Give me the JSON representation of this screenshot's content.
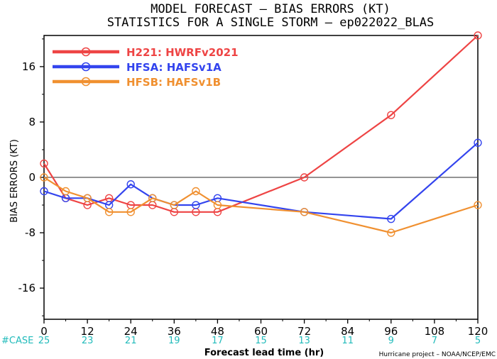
{
  "chart_data": {
    "type": "line",
    "title": "MODEL FORECAST – BIAS ERRORS (KT)",
    "subtitle": "STATISTICS FOR A SINGLE STORM – ep022022_BLAS",
    "xlabel": "Forecast lead time (hr)",
    "ylabel": "BIAS ERRORS (KT)",
    "xlim": [
      0,
      120
    ],
    "ylim": [
      -20.5,
      20.5
    ],
    "x_ticks": [
      "0",
      "12",
      "24",
      "36",
      "48",
      "60",
      "72",
      "84",
      "96",
      "108",
      "120"
    ],
    "y_ticks": [
      "16",
      "8",
      "0",
      "-8",
      "-16"
    ],
    "y_tick_values": [
      16,
      8,
      0,
      -8,
      -16
    ],
    "zero_line": true,
    "grid": false,
    "legend_position": "top-left",
    "case_label": "#CASE",
    "case_counts": [
      "25",
      "23",
      "21",
      "19",
      "17",
      "15",
      "13",
      "11",
      "9",
      "7",
      "5"
    ],
    "credit": "Hurricane project – NOAA/NCEP/EMC",
    "series": [
      {
        "name": "H221: HWRFv2021",
        "color": "#ee4444",
        "x": [
          0,
          6,
          12,
          18,
          24,
          30,
          36,
          42,
          48,
          72,
          96,
          120
        ],
        "y": [
          2,
          -3,
          -4,
          -3,
          -4,
          -4,
          -5,
          -5,
          -5,
          0,
          9,
          20.5
        ]
      },
      {
        "name": "HFSA: HAFSv1A",
        "color": "#3344ee",
        "x": [
          0,
          6,
          12,
          18,
          24,
          30,
          36,
          42,
          48,
          72,
          96,
          120
        ],
        "y": [
          -2,
          -3,
          -3,
          -4,
          -1,
          -3,
          -4,
          -4,
          -3,
          -5,
          -6,
          5
        ]
      },
      {
        "name": "HFSB: HAFSv1B",
        "color": "#f09030",
        "x": [
          0,
          6,
          12,
          18,
          24,
          30,
          36,
          42,
          48,
          72,
          96,
          120
        ],
        "y": [
          0,
          -2,
          -3,
          -5,
          -5,
          -3,
          -4,
          -2,
          -4,
          -5,
          -8,
          -4
        ]
      }
    ]
  }
}
